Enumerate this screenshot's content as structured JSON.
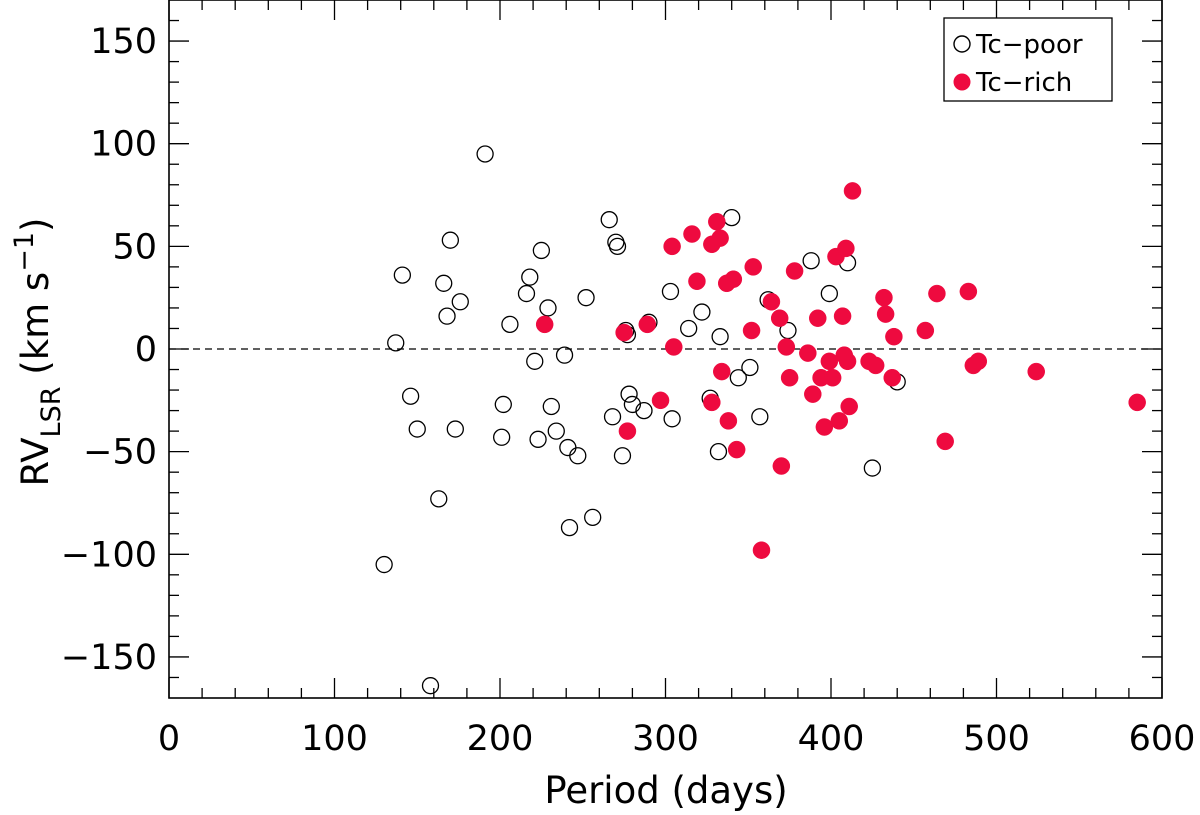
{
  "chart_data": {
    "type": "scatter",
    "xlabel": "Period (days)",
    "ylabel": {
      "main": "RV",
      "subscript": "LSR",
      "units_open": " (km s",
      "superscript": "−1",
      "units_close": ")"
    },
    "xlim": [
      0,
      600
    ],
    "ylim": [
      -170,
      170
    ],
    "x_ticks": [
      0,
      100,
      200,
      300,
      400,
      500,
      600
    ],
    "x_tick_labels": [
      "0",
      "100",
      "200",
      "300",
      "400",
      "500",
      "600"
    ],
    "y_ticks": [
      -150,
      -100,
      -50,
      0,
      50,
      100,
      150
    ],
    "y_tick_labels": [
      "−150",
      "−100",
      "−50",
      "0",
      "50",
      "100",
      "150"
    ],
    "reference_line": {
      "y": 0,
      "style": "dashed"
    },
    "legend": {
      "position": "top-right",
      "entries": [
        "Tc−poor",
        "Tc−rich"
      ]
    },
    "colors": {
      "tc_rich": "#ee0a3f",
      "tc_poor": "#000000"
    },
    "series": [
      {
        "name": "Tc−poor",
        "marker": "open-circle",
        "points": [
          [
            130,
            -105
          ],
          [
            137,
            3
          ],
          [
            141,
            36
          ],
          [
            146,
            -23
          ],
          [
            150,
            -39
          ],
          [
            158,
            -164
          ],
          [
            163,
            -73
          ],
          [
            166,
            32
          ],
          [
            168,
            16
          ],
          [
            170,
            53
          ],
          [
            173,
            -39
          ],
          [
            176,
            23
          ],
          [
            191,
            95
          ],
          [
            201,
            -43
          ],
          [
            202,
            -27
          ],
          [
            206,
            12
          ],
          [
            216,
            27
          ],
          [
            218,
            35
          ],
          [
            221,
            -6
          ],
          [
            223,
            -44
          ],
          [
            225,
            48
          ],
          [
            229,
            20
          ],
          [
            231,
            -28
          ],
          [
            234,
            -40
          ],
          [
            239,
            -3
          ],
          [
            241,
            -48
          ],
          [
            242,
            -87
          ],
          [
            247,
            -52
          ],
          [
            252,
            25
          ],
          [
            256,
            -82
          ],
          [
            266,
            63
          ],
          [
            268,
            -33
          ],
          [
            270,
            52
          ],
          [
            271,
            50
          ],
          [
            274,
            -52
          ],
          [
            276,
            9
          ],
          [
            277,
            7
          ],
          [
            278,
            -22
          ],
          [
            280,
            -27
          ],
          [
            287,
            -30
          ],
          [
            290,
            13
          ],
          [
            303,
            28
          ],
          [
            304,
            -34
          ],
          [
            314,
            10
          ],
          [
            322,
            18
          ],
          [
            327,
            -24
          ],
          [
            332,
            -50
          ],
          [
            333,
            6
          ],
          [
            340,
            64
          ],
          [
            344,
            -14
          ],
          [
            351,
            -9
          ],
          [
            357,
            -33
          ],
          [
            362,
            24
          ],
          [
            374,
            9
          ],
          [
            388,
            43
          ],
          [
            399,
            27
          ],
          [
            410,
            42
          ],
          [
            425,
            -58
          ],
          [
            440,
            -16
          ]
        ]
      },
      {
        "name": "Tc−rich",
        "marker": "filled-circle",
        "points": [
          [
            227,
            12
          ],
          [
            275,
            8
          ],
          [
            277,
            -40
          ],
          [
            289,
            12
          ],
          [
            297,
            -25
          ],
          [
            304,
            50
          ],
          [
            305,
            1
          ],
          [
            316,
            56
          ],
          [
            319,
            33
          ],
          [
            328,
            -26
          ],
          [
            328,
            51
          ],
          [
            331,
            62
          ],
          [
            333,
            54
          ],
          [
            334,
            -11
          ],
          [
            337,
            32
          ],
          [
            338,
            -35
          ],
          [
            341,
            34
          ],
          [
            343,
            -49
          ],
          [
            352,
            9
          ],
          [
            353,
            40
          ],
          [
            364,
            23
          ],
          [
            369,
            15
          ],
          [
            370,
            -57
          ],
          [
            373,
            1
          ],
          [
            375,
            -14
          ],
          [
            378,
            38
          ],
          [
            358,
            -98
          ],
          [
            386,
            -2
          ],
          [
            389,
            -22
          ],
          [
            392,
            15
          ],
          [
            394,
            -14
          ],
          [
            396,
            -38
          ],
          [
            399,
            -6
          ],
          [
            401,
            -14
          ],
          [
            403,
            45
          ],
          [
            405,
            -35
          ],
          [
            407,
            16
          ],
          [
            408,
            -3
          ],
          [
            409,
            49
          ],
          [
            410,
            -6
          ],
          [
            411,
            -28
          ],
          [
            413,
            77
          ],
          [
            423,
            -6
          ],
          [
            427,
            -8
          ],
          [
            432,
            25
          ],
          [
            433,
            17
          ],
          [
            437,
            -14
          ],
          [
            438,
            6
          ],
          [
            457,
            9
          ],
          [
            464,
            27
          ],
          [
            469,
            -45
          ],
          [
            483,
            28
          ],
          [
            486,
            -8
          ],
          [
            489,
            -6
          ],
          [
            524,
            -11
          ],
          [
            585,
            -26
          ]
        ]
      }
    ]
  }
}
